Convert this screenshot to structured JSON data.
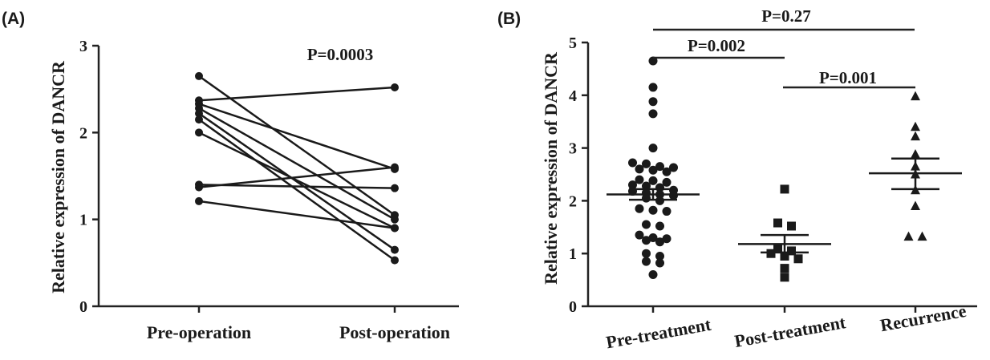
{
  "chart_data": [
    {
      "panel_label": "(A)",
      "type": "line",
      "ylabel": "Relative expression of DANCR",
      "ylim": [
        0,
        3
      ],
      "yticks": [
        "0",
        "1",
        "2",
        "3"
      ],
      "categories": [
        "Pre-operation",
        "Post-operation"
      ],
      "annotation": "P=0.0003",
      "pairs": [
        [
          2.65,
          1.05
        ],
        [
          2.37,
          2.52
        ],
        [
          2.33,
          1.58
        ],
        [
          2.28,
          1.0
        ],
        [
          2.22,
          0.65
        ],
        [
          2.15,
          0.53
        ],
        [
          2.0,
          0.9
        ],
        [
          1.4,
          1.36
        ],
        [
          1.37,
          1.6
        ],
        [
          1.21,
          0.9
        ]
      ]
    },
    {
      "panel_label": "(B)",
      "type": "scatter",
      "ylabel": "Relative expression of DANCR",
      "ylim": [
        0,
        5
      ],
      "yticks": [
        "0",
        "1",
        "2",
        "3",
        "4",
        "5"
      ],
      "categories": [
        "Pre-treatment",
        "Post-treatment",
        "Recurrence"
      ],
      "series": [
        {
          "category": "Pre-treatment",
          "marker": "circle",
          "mean": 2.12,
          "sem_low": 2.02,
          "sem_high": 2.22,
          "values": [
            4.65,
            4.15,
            3.88,
            3.65,
            3.0,
            2.72,
            2.7,
            2.65,
            2.63,
            2.6,
            2.58,
            2.55,
            2.4,
            2.38,
            2.35,
            2.3,
            2.28,
            2.25,
            2.2,
            2.18,
            2.15,
            2.12,
            2.1,
            2.05,
            2.0,
            1.85,
            1.82,
            1.8,
            1.55,
            1.52,
            1.35,
            1.3,
            1.28,
            1.25,
            1.22,
            1.0,
            0.95,
            0.85,
            0.82,
            0.6
          ]
        },
        {
          "category": "Post-treatment",
          "marker": "square",
          "mean": 1.18,
          "sem_low": 1.02,
          "sem_high": 1.35,
          "values": [
            2.22,
            1.58,
            1.52,
            1.1,
            1.05,
            1.0,
            0.95,
            0.9,
            0.72,
            0.55
          ]
        },
        {
          "category": "Recurrence",
          "marker": "triangle",
          "mean": 2.52,
          "sem_low": 2.22,
          "sem_high": 2.8,
          "values": [
            3.98,
            3.4,
            3.22,
            2.88,
            2.65,
            2.5,
            2.2,
            1.9,
            1.32,
            1.32
          ]
        }
      ],
      "comparisons": [
        {
          "label": "P=0.27",
          "from": "Pre-treatment",
          "to": "Recurrence"
        },
        {
          "label": "P=0.002",
          "from": "Pre-treatment",
          "to": "Post-treatment"
        },
        {
          "label": "P=0.001",
          "from": "Post-treatment",
          "to": "Recurrence"
        }
      ]
    }
  ]
}
